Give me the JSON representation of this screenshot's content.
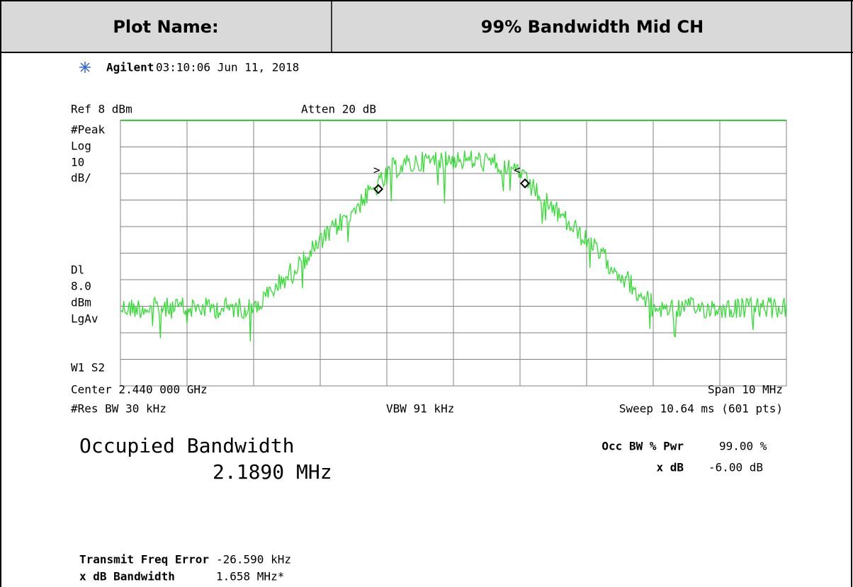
{
  "header": {
    "label": "Plot Name:",
    "title": "99% Bandwidth Mid CH"
  },
  "screen": {
    "brand": "Agilent",
    "timestamp": "03:10:06  Jun 11, 2018",
    "ref": "Ref 8 dBm",
    "atten": "Atten 20 dB",
    "left_labels": [
      "#Peak",
      "Log",
      "10",
      "dB/",
      "Dl",
      "8.0",
      "dBm",
      "LgAv",
      "W1  S2"
    ],
    "center": "Center 2.440 000 GHz",
    "span": "Span 10 MHz",
    "res_bw": "#Res BW 30 kHz",
    "vbw": "VBW 91 kHz",
    "sweep": "Sweep 10.64 ms (601 pts)"
  },
  "results": {
    "occ_bw_label": "Occupied Bandwidth",
    "occ_bw_value": "2.1890 MHz",
    "pct_pwr_label": "Occ BW % Pwr",
    "pct_pwr_value": "99.00 %",
    "xdb_label": "x dB",
    "xdb_value": "-6.00 dB",
    "tfe_label": "Transmit Freq Error",
    "tfe_value": "-26.590 kHz",
    "xdbbw_label": "x dB Bandwidth",
    "xdbbw_value": "1.658 MHz*"
  }
}
